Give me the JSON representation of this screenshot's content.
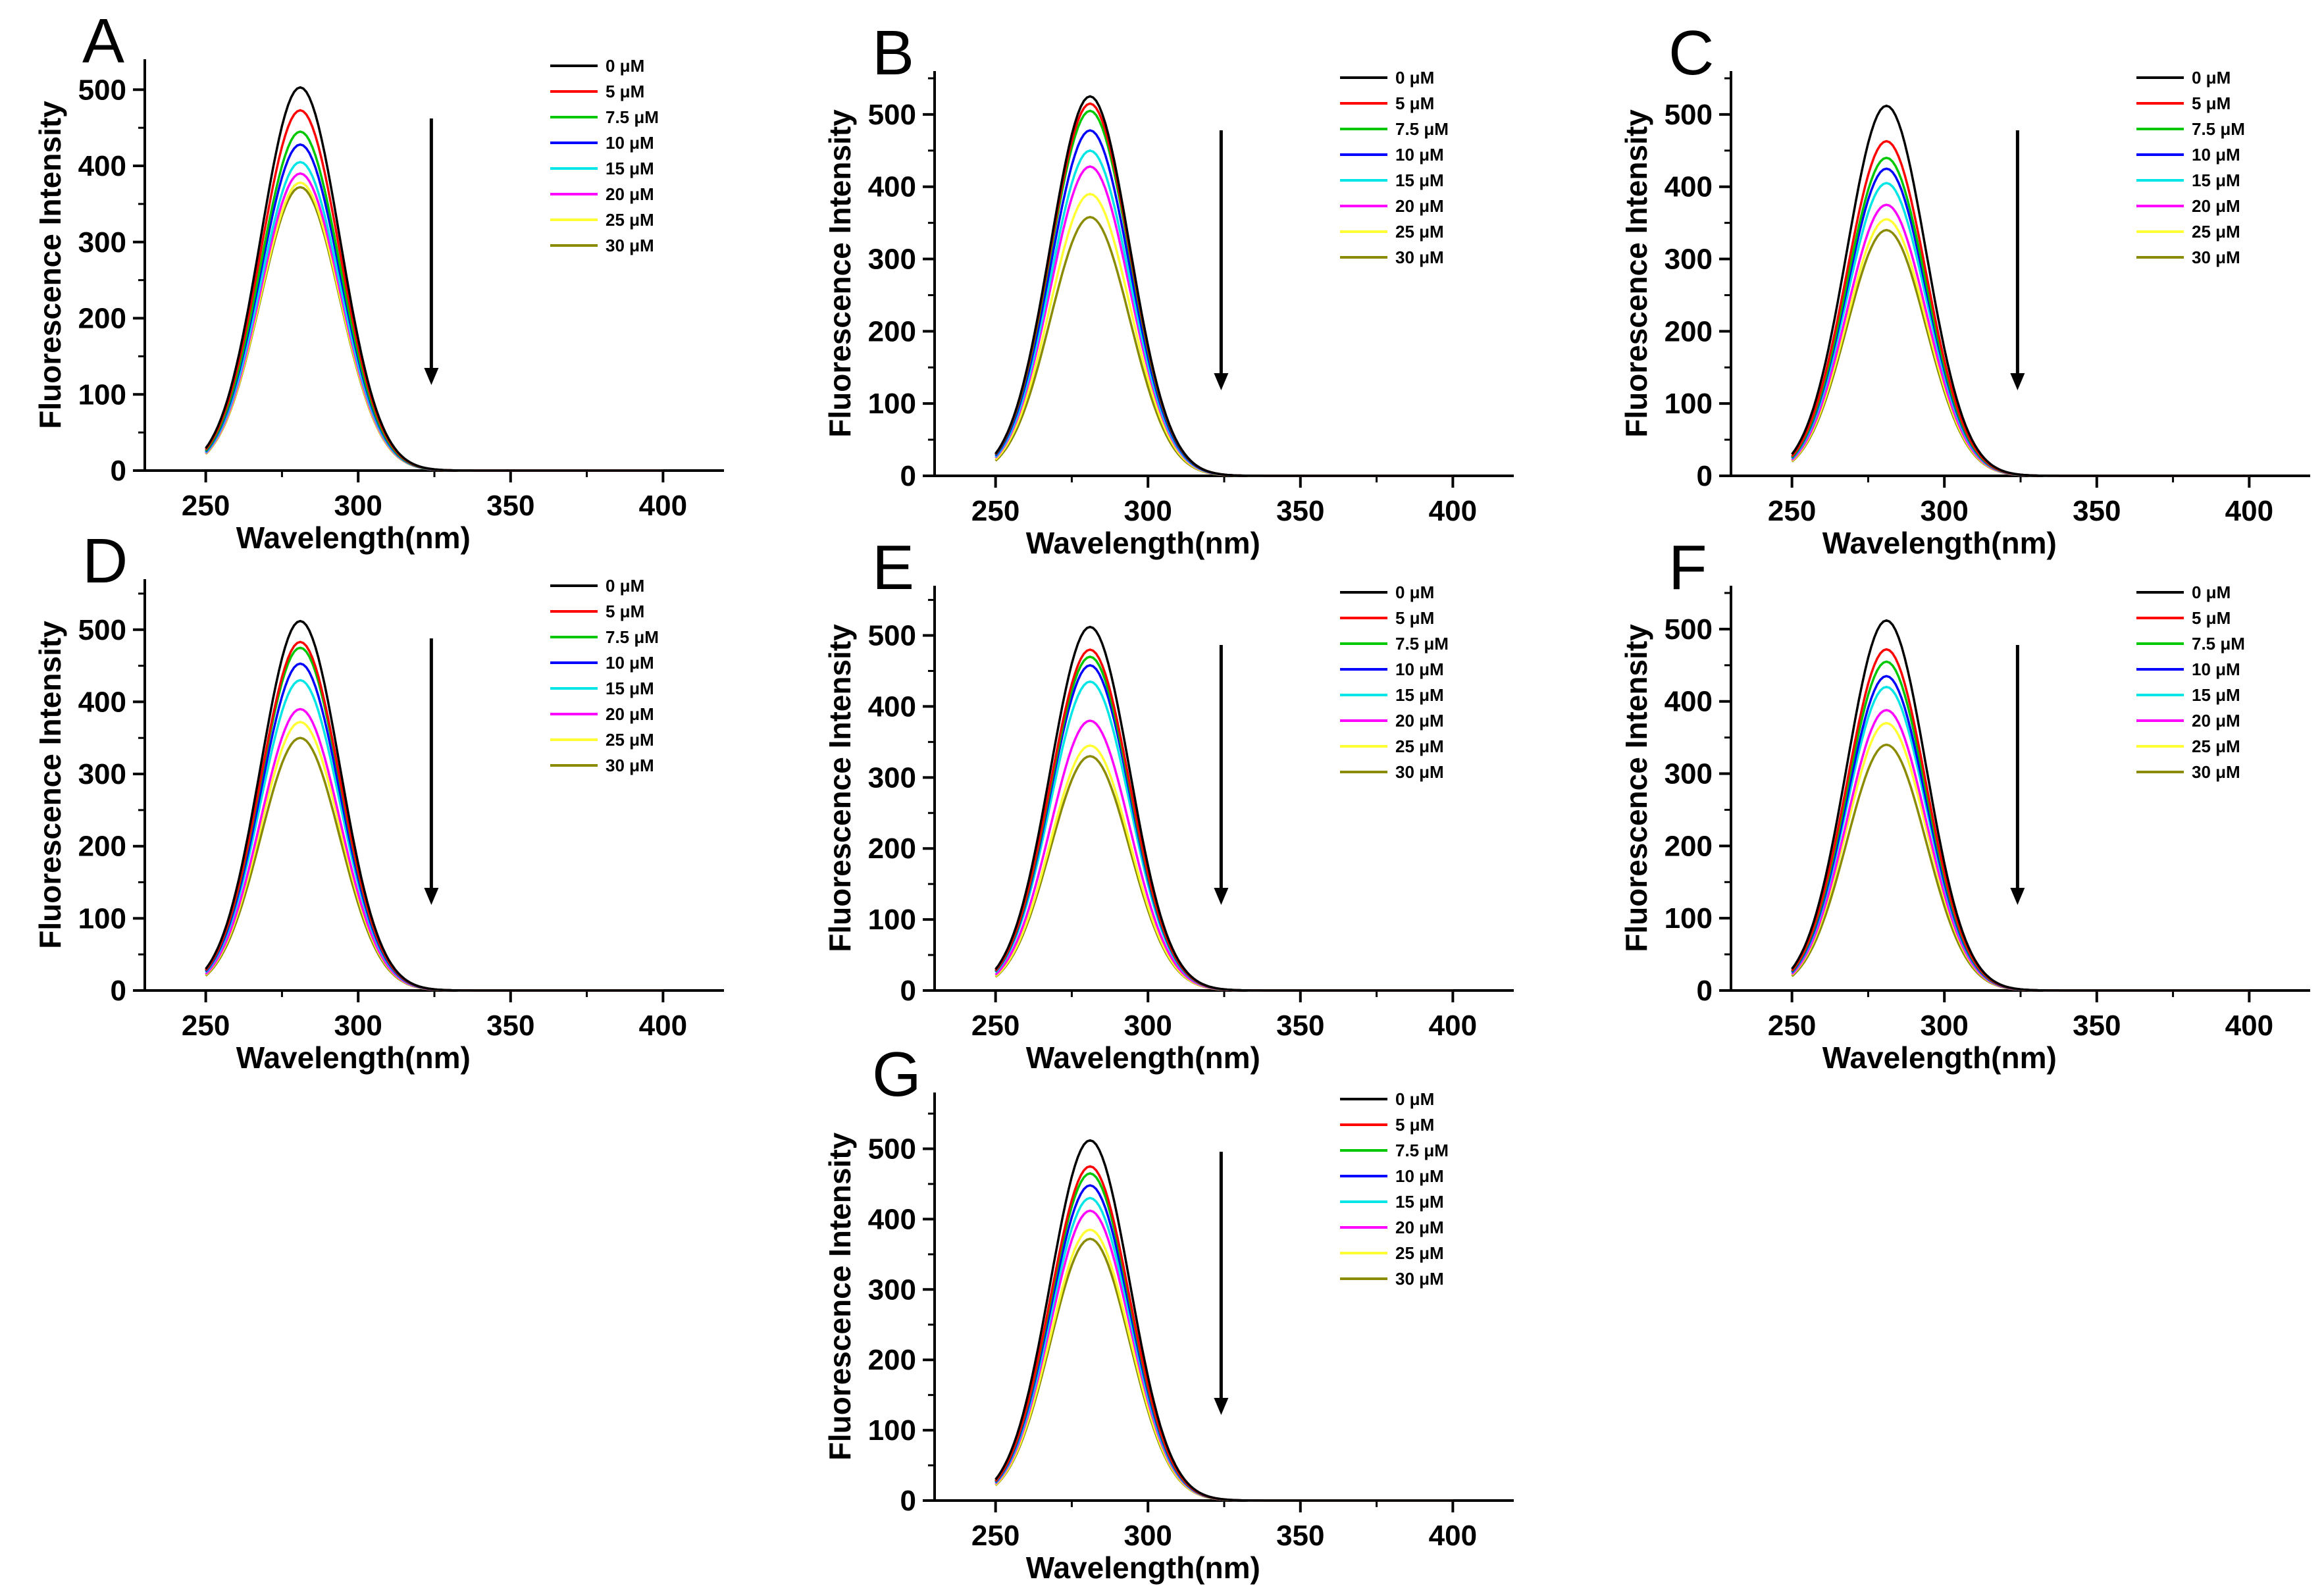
{
  "figure": {
    "x_axis_title": "Wavelength(nm)",
    "y_axis_title": "Fluorescence Intensity"
  },
  "colors": {
    "0 μM": "#000000",
    "5 μM": "#ff0000",
    "7.5 μM": "#00c800",
    "10 μM": "#0000ff",
    "15 μM": "#00e5e5",
    "20 μM": "#ff00ff",
    "25 μM": "#ffff33",
    "30 μM": "#8b8b00"
  },
  "chart_data": [
    {
      "panel": "A",
      "type": "line",
      "xlabel": "Wavelength(nm)",
      "ylabel": "Fluorescence Intensity",
      "x_ticks": [
        250,
        300,
        350,
        400
      ],
      "y_ticks": [
        0,
        100,
        200,
        300,
        400,
        500
      ],
      "xlim": [
        230,
        420
      ],
      "ylim": [
        0,
        540
      ],
      "peak_x": 281,
      "peak_width": 13,
      "trend": "decrease",
      "series": [
        {
          "name": "0 μM",
          "peak": 503
        },
        {
          "name": "5 μM",
          "peak": 473
        },
        {
          "name": "7.5 μM",
          "peak": 445
        },
        {
          "name": "10 μM",
          "peak": 428
        },
        {
          "name": "15 μM",
          "peak": 405
        },
        {
          "name": "20 μM",
          "peak": 390
        },
        {
          "name": "25 μM",
          "peak": 378
        },
        {
          "name": "30 μM",
          "peak": 372
        }
      ]
    },
    {
      "panel": "B",
      "type": "line",
      "xlabel": "Wavelength(nm)",
      "ylabel": "Fluorescence Intensity",
      "x_ticks": [
        250,
        300,
        350,
        400
      ],
      "y_ticks": [
        0,
        100,
        200,
        300,
        400,
        500
      ],
      "xlim": [
        230,
        420
      ],
      "ylim": [
        0,
        560
      ],
      "peak_x": 281,
      "peak_width": 13,
      "trend": "decrease",
      "series": [
        {
          "name": "0 μM",
          "peak": 525
        },
        {
          "name": "5 μM",
          "peak": 515
        },
        {
          "name": "7.5 μM",
          "peak": 505
        },
        {
          "name": "10 μM",
          "peak": 478
        },
        {
          "name": "15 μM",
          "peak": 450
        },
        {
          "name": "20 μM",
          "peak": 428
        },
        {
          "name": "25 μM",
          "peak": 390
        },
        {
          "name": "30 μM",
          "peak": 358
        }
      ]
    },
    {
      "panel": "C",
      "type": "line",
      "xlabel": "Wavelength(nm)",
      "ylabel": "Fluorescence Intensity",
      "x_ticks": [
        250,
        300,
        350,
        400
      ],
      "y_ticks": [
        0,
        100,
        200,
        300,
        400,
        500
      ],
      "xlim": [
        230,
        420
      ],
      "ylim": [
        0,
        560
      ],
      "peak_x": 281,
      "peak_width": 13,
      "trend": "decrease",
      "series": [
        {
          "name": "0 μM",
          "peak": 512
        },
        {
          "name": "5 μM",
          "peak": 463
        },
        {
          "name": "7.5 μM",
          "peak": 440
        },
        {
          "name": "10 μM",
          "peak": 425
        },
        {
          "name": "15 μM",
          "peak": 405
        },
        {
          "name": "20 μM",
          "peak": 375
        },
        {
          "name": "25 μM",
          "peak": 355
        },
        {
          "name": "30 μM",
          "peak": 340
        }
      ]
    },
    {
      "panel": "D",
      "type": "line",
      "xlabel": "Wavelength(nm)",
      "ylabel": "Fluorescence Intensity",
      "x_ticks": [
        250,
        300,
        350,
        400
      ],
      "y_ticks": [
        0,
        100,
        200,
        300,
        400,
        500
      ],
      "xlim": [
        230,
        420
      ],
      "ylim": [
        0,
        570
      ],
      "peak_x": 281,
      "peak_width": 13,
      "trend": "decrease",
      "series": [
        {
          "name": "0 μM",
          "peak": 512
        },
        {
          "name": "5 μM",
          "peak": 483
        },
        {
          "name": "7.5 μM",
          "peak": 475
        },
        {
          "name": "10 μM",
          "peak": 453
        },
        {
          "name": "15 μM",
          "peak": 430
        },
        {
          "name": "20 μM",
          "peak": 390
        },
        {
          "name": "25 μM",
          "peak": 372
        },
        {
          "name": "30 μM",
          "peak": 350
        }
      ]
    },
    {
      "panel": "E",
      "type": "line",
      "xlabel": "Wavelength(nm)",
      "ylabel": "Fluorescence Intensity",
      "x_ticks": [
        250,
        300,
        350,
        400
      ],
      "y_ticks": [
        0,
        100,
        200,
        300,
        400,
        500
      ],
      "xlim": [
        230,
        420
      ],
      "ylim": [
        0,
        570
      ],
      "peak_x": 281,
      "peak_width": 13,
      "trend": "decrease",
      "series": [
        {
          "name": "0 μM",
          "peak": 512
        },
        {
          "name": "5 μM",
          "peak": 480
        },
        {
          "name": "7.5 μM",
          "peak": 470
        },
        {
          "name": "10 μM",
          "peak": 458
        },
        {
          "name": "15 μM",
          "peak": 435
        },
        {
          "name": "20 μM",
          "peak": 380
        },
        {
          "name": "25 μM",
          "peak": 345
        },
        {
          "name": "30 μM",
          "peak": 330
        }
      ]
    },
    {
      "panel": "F",
      "type": "line",
      "xlabel": "Wavelength(nm)",
      "ylabel": "Fluorescence Intensity",
      "x_ticks": [
        250,
        300,
        350,
        400
      ],
      "y_ticks": [
        0,
        100,
        200,
        300,
        400,
        500
      ],
      "xlim": [
        230,
        420
      ],
      "ylim": [
        0,
        560
      ],
      "peak_x": 281,
      "peak_width": 13,
      "trend": "decrease",
      "series": [
        {
          "name": "0 μM",
          "peak": 512
        },
        {
          "name": "5 μM",
          "peak": 472
        },
        {
          "name": "7.5 μM",
          "peak": 455
        },
        {
          "name": "10 μM",
          "peak": 435
        },
        {
          "name": "15 μM",
          "peak": 420
        },
        {
          "name": "20 μM",
          "peak": 388
        },
        {
          "name": "25 μM",
          "peak": 370
        },
        {
          "name": "30 μM",
          "peak": 340
        }
      ]
    },
    {
      "panel": "G",
      "type": "line",
      "xlabel": "Wavelength(nm)",
      "ylabel": "Fluorescence Intensity",
      "x_ticks": [
        250,
        300,
        350,
        400
      ],
      "y_ticks": [
        0,
        100,
        200,
        300,
        400,
        500
      ],
      "xlim": [
        230,
        420
      ],
      "ylim": [
        0,
        580
      ],
      "peak_x": 281,
      "peak_width": 13,
      "trend": "decrease",
      "series": [
        {
          "name": "0 μM",
          "peak": 512
        },
        {
          "name": "5 μM",
          "peak": 475
        },
        {
          "name": "7.5 μM",
          "peak": 465
        },
        {
          "name": "10 μM",
          "peak": 448
        },
        {
          "name": "15 μM",
          "peak": 430
        },
        {
          "name": "20 μM",
          "peak": 412
        },
        {
          "name": "25 μM",
          "peak": 385
        },
        {
          "name": "30 μM",
          "peak": 372
        }
      ]
    }
  ]
}
